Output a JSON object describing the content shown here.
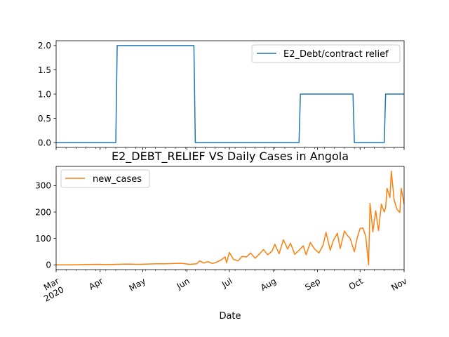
{
  "chart_data": [
    {
      "type": "line",
      "title": "",
      "xlabel": "",
      "ylabel": "",
      "ylim": [
        -0.1,
        2.1
      ],
      "yticks": [
        0.0,
        0.5,
        1.0,
        1.5,
        2.0
      ],
      "ytick_labels": [
        "0.0",
        "0.5",
        "1.0",
        "1.5",
        "2.0"
      ],
      "legend_position": "top-right",
      "grid": false,
      "series": [
        {
          "name": "E2_Debt/contract relief",
          "color": "#1f77b4",
          "x": [
            "2020-03-01",
            "2020-04-12",
            "2020-04-13",
            "2020-06-06",
            "2020-06-07",
            "2020-08-19",
            "2020-08-20",
            "2020-09-26",
            "2020-09-27",
            "2020-10-18",
            "2020-10-19",
            "2020-11-01"
          ],
          "y": [
            0,
            0,
            2,
            2,
            0,
            0,
            1,
            1,
            0,
            0,
            1,
            1
          ]
        }
      ]
    },
    {
      "type": "line",
      "title": "E2_DEBT_RELIEF VS Daily Cases in Angola",
      "xlabel": "Date",
      "ylabel": "",
      "ylim": [
        -18,
        373
      ],
      "yticks": [
        0,
        100,
        200,
        300
      ],
      "ytick_labels": [
        "0",
        "100",
        "200",
        "300"
      ],
      "legend_position": "top-left",
      "grid": false,
      "x_start": "2020-03-01",
      "x_end": "2020-11-01",
      "month_ticks": [
        "2020-03-01",
        "2020-04-01",
        "2020-05-01",
        "2020-06-01",
        "2020-07-01",
        "2020-08-01",
        "2020-09-01",
        "2020-10-01",
        "2020-11-01"
      ],
      "month_tick_labels": [
        "Mar\n2020",
        "Apr",
        "May",
        "Jun",
        "Jul",
        "Aug",
        "Sep",
        "Oct",
        "Nov"
      ],
      "series": [
        {
          "name": "new_cases",
          "color": "#ff7f0e",
          "x": [
            "2020-03-01",
            "2020-03-10",
            "2020-03-20",
            "2020-03-30",
            "2020-04-05",
            "2020-04-12",
            "2020-04-20",
            "2020-04-28",
            "2020-05-04",
            "2020-05-10",
            "2020-05-16",
            "2020-05-22",
            "2020-05-28",
            "2020-06-03",
            "2020-06-08",
            "2020-06-10",
            "2020-06-13",
            "2020-06-16",
            "2020-06-19",
            "2020-06-22",
            "2020-06-25",
            "2020-06-28",
            "2020-06-29",
            "2020-07-01",
            "2020-07-04",
            "2020-07-07",
            "2020-07-10",
            "2020-07-13",
            "2020-07-16",
            "2020-07-19",
            "2020-07-22",
            "2020-07-25",
            "2020-07-28",
            "2020-07-31",
            "2020-08-02",
            "2020-08-05",
            "2020-08-08",
            "2020-08-11",
            "2020-08-13",
            "2020-08-16",
            "2020-08-19",
            "2020-08-22",
            "2020-08-24",
            "2020-08-27",
            "2020-08-30",
            "2020-09-02",
            "2020-09-05",
            "2020-09-07",
            "2020-09-10",
            "2020-09-12",
            "2020-09-15",
            "2020-09-17",
            "2020-09-20",
            "2020-09-22",
            "2020-09-24",
            "2020-09-27",
            "2020-09-29",
            "2020-10-01",
            "2020-10-03",
            "2020-10-05",
            "2020-10-07",
            "2020-10-08",
            "2020-10-10",
            "2020-10-12",
            "2020-10-14",
            "2020-10-16",
            "2020-10-18",
            "2020-10-19",
            "2020-10-20",
            "2020-10-22",
            "2020-10-23",
            "2020-10-25",
            "2020-10-27",
            "2020-10-29",
            "2020-10-30",
            "2020-11-01"
          ],
          "y": [
            0,
            0,
            1,
            2,
            1,
            2,
            3,
            2,
            3,
            4,
            4,
            5,
            6,
            2,
            4,
            15,
            7,
            12,
            5,
            10,
            18,
            30,
            8,
            47,
            20,
            15,
            32,
            30,
            45,
            25,
            40,
            58,
            38,
            52,
            78,
            42,
            95,
            60,
            82,
            40,
            55,
            72,
            38,
            85,
            60,
            45,
            75,
            123,
            55,
            90,
            120,
            62,
            128,
            112,
            100,
            50,
            102,
            138,
            140,
            108,
            0,
            233,
            125,
            205,
            130,
            230,
            200,
            218,
            290,
            255,
            355,
            245,
            210,
            198,
            290,
            230
          ]
        }
      ]
    }
  ]
}
